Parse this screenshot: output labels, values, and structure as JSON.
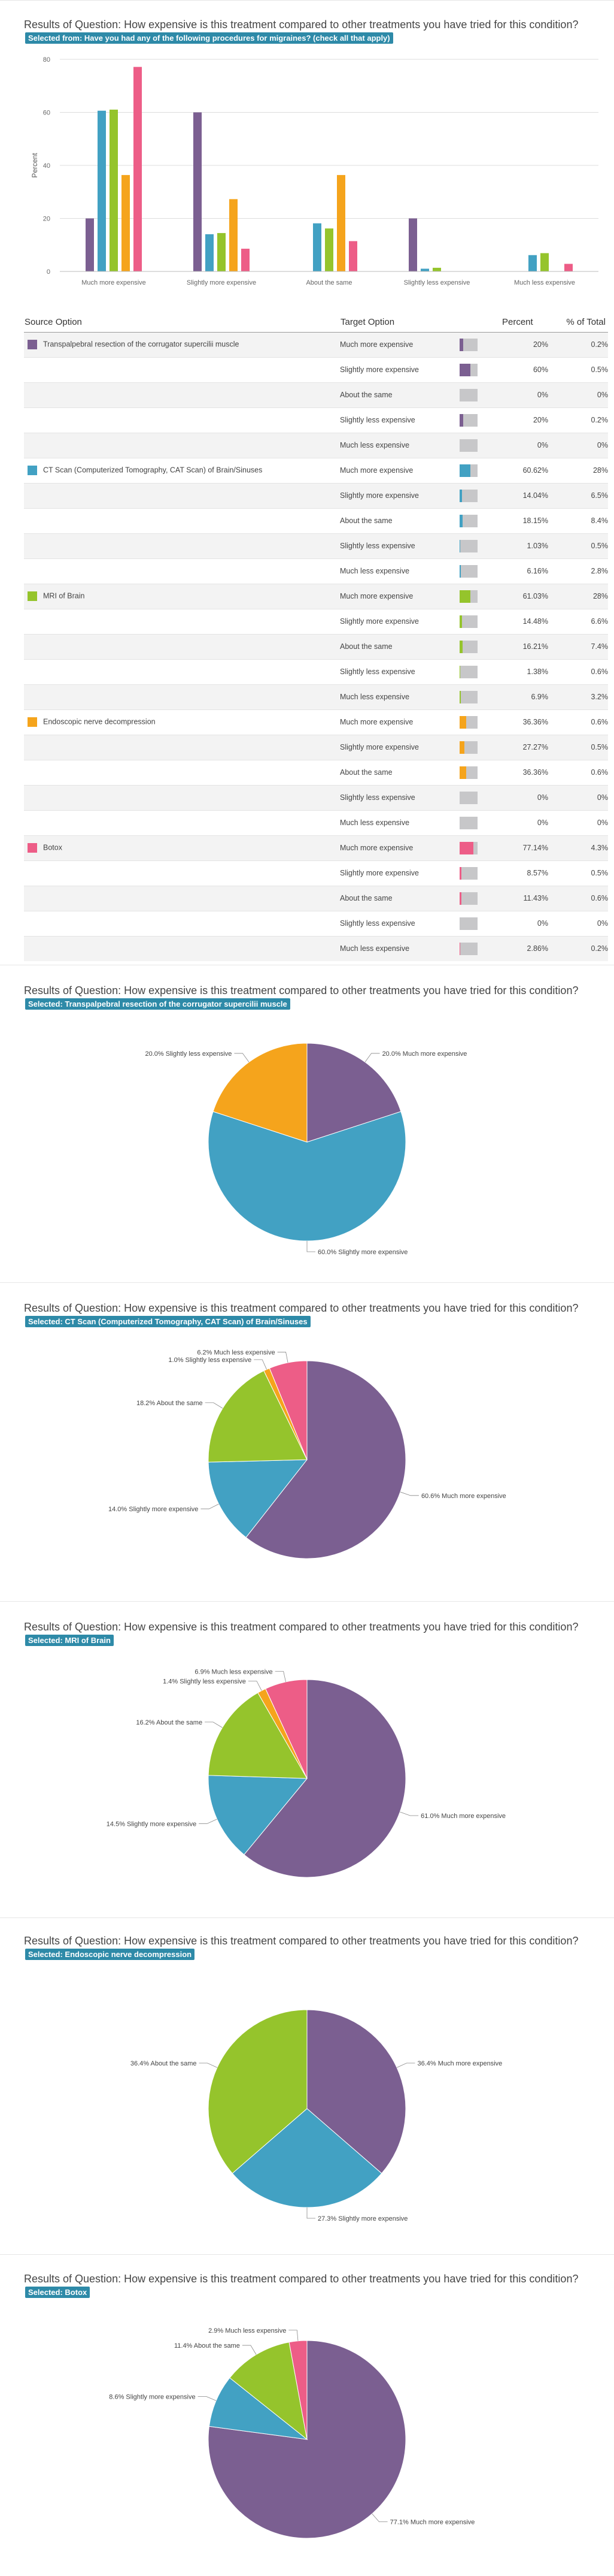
{
  "question_title": "Results of Question: How expensive is this treatment compared to other treatments you have tried for this condition?",
  "colors": {
    "Transpalpebral resection of the corrugator supercilii muscle": "#7b5f91",
    "CT Scan (Computerized Tomography, CAT Scan) of Brain/Sinuses": "#42a1c3",
    "MRI of Brain": "#95c42c",
    "Endoscopic nerve decompression": "#f5a41c",
    "Botox": "#ed5d87"
  },
  "bar_section": {
    "selected_label": "Selected from: Have you had any of the following procedures for migraines? (check all that apply)"
  },
  "table": {
    "headers": {
      "source": "Source Option",
      "target": "Target Option",
      "percent": "Percent",
      "total": "% of Total"
    },
    "rows": [
      {
        "source": "Transpalpebral resection of the corrugator supercilii muscle",
        "target": "Much more expensive",
        "percent": "20%",
        "total": "0.2%",
        "value": 20
      },
      {
        "source": "",
        "target": "Slightly more expensive",
        "percent": "60%",
        "total": "0.5%",
        "value": 60
      },
      {
        "source": "",
        "target": "About the same",
        "percent": "0%",
        "total": "0%",
        "value": 0
      },
      {
        "source": "",
        "target": "Slightly less expensive",
        "percent": "20%",
        "total": "0.2%",
        "value": 20
      },
      {
        "source": "",
        "target": "Much less expensive",
        "percent": "0%",
        "total": "0%",
        "value": 0
      },
      {
        "source": "CT Scan (Computerized Tomography, CAT Scan) of Brain/Sinuses",
        "target": "Much more expensive",
        "percent": "60.62%",
        "total": "28%",
        "value": 60.62
      },
      {
        "source": "",
        "target": "Slightly more expensive",
        "percent": "14.04%",
        "total": "6.5%",
        "value": 14.04
      },
      {
        "source": "",
        "target": "About the same",
        "percent": "18.15%",
        "total": "8.4%",
        "value": 18.15
      },
      {
        "source": "",
        "target": "Slightly less expensive",
        "percent": "1.03%",
        "total": "0.5%",
        "value": 1.03
      },
      {
        "source": "",
        "target": "Much less expensive",
        "percent": "6.16%",
        "total": "2.8%",
        "value": 6.16
      },
      {
        "source": "MRI of Brain",
        "target": "Much more expensive",
        "percent": "61.03%",
        "total": "28%",
        "value": 61.03
      },
      {
        "source": "",
        "target": "Slightly more expensive",
        "percent": "14.48%",
        "total": "6.6%",
        "value": 14.48
      },
      {
        "source": "",
        "target": "About the same",
        "percent": "16.21%",
        "total": "7.4%",
        "value": 16.21
      },
      {
        "source": "",
        "target": "Slightly less expensive",
        "percent": "1.38%",
        "total": "0.6%",
        "value": 1.38
      },
      {
        "source": "",
        "target": "Much less expensive",
        "percent": "6.9%",
        "total": "3.2%",
        "value": 6.9
      },
      {
        "source": "Endoscopic nerve decompression",
        "target": "Much more expensive",
        "percent": "36.36%",
        "total": "0.6%",
        "value": 36.36
      },
      {
        "source": "",
        "target": "Slightly more expensive",
        "percent": "27.27%",
        "total": "0.5%",
        "value": 27.27
      },
      {
        "source": "",
        "target": "About the same",
        "percent": "36.36%",
        "total": "0.6%",
        "value": 36.36
      },
      {
        "source": "",
        "target": "Slightly less expensive",
        "percent": "0%",
        "total": "0%",
        "value": 0
      },
      {
        "source": "",
        "target": "Much less expensive",
        "percent": "0%",
        "total": "0%",
        "value": 0
      },
      {
        "source": "Botox",
        "target": "Much more expensive",
        "percent": "77.14%",
        "total": "4.3%",
        "value": 77.14
      },
      {
        "source": "",
        "target": "Slightly more expensive",
        "percent": "8.57%",
        "total": "0.5%",
        "value": 8.57
      },
      {
        "source": "",
        "target": "About the same",
        "percent": "11.43%",
        "total": "0.6%",
        "value": 11.43
      },
      {
        "source": "",
        "target": "Slightly less expensive",
        "percent": "0%",
        "total": "0%",
        "value": 0
      },
      {
        "source": "",
        "target": "Much less expensive",
        "percent": "2.86%",
        "total": "0.2%",
        "value": 2.86
      }
    ]
  },
  "pie_sections": [
    {
      "selected_label": "Selected: Transpalpebral resection of the corrugator supercilii muscle"
    },
    {
      "selected_label": "Selected: CT Scan (Computerized Tomography, CAT Scan) of Brain/Sinuses"
    },
    {
      "selected_label": "Selected: MRI of Brain"
    },
    {
      "selected_label": "Selected: Endoscopic nerve decompression"
    },
    {
      "selected_label": "Selected: Botox"
    }
  ],
  "chart_data": [
    {
      "type": "bar",
      "ylabel": "Percent",
      "ylim": [
        0,
        80
      ],
      "yticks": [
        0,
        20,
        40,
        60,
        80
      ],
      "grid": true,
      "categories": [
        "Much more expensive",
        "Slightly more expensive",
        "About the same",
        "Slightly less expensive",
        "Much less expensive"
      ],
      "series": [
        {
          "name": "Transpalpebral resection of the corrugator supercilii muscle",
          "values": [
            20,
            60,
            0,
            20,
            0
          ]
        },
        {
          "name": "CT Scan (Computerized Tomography, CAT Scan) of Brain/Sinuses",
          "values": [
            60.62,
            14.04,
            18.15,
            1.03,
            6.16
          ]
        },
        {
          "name": "MRI of Brain",
          "values": [
            61.03,
            14.48,
            16.21,
            1.38,
            6.9
          ]
        },
        {
          "name": "Endoscopic nerve decompression",
          "values": [
            36.36,
            27.27,
            36.36,
            0,
            0
          ]
        },
        {
          "name": "Botox",
          "values": [
            77.14,
            8.57,
            11.43,
            0,
            2.86
          ]
        }
      ]
    },
    {
      "type": "pie",
      "slices": [
        {
          "label": "Much more expensive",
          "value": 20,
          "text": "20.0% Much more expensive"
        },
        {
          "label": "Slightly more expensive",
          "value": 60,
          "text": "60.0% Slightly more expensive"
        },
        {
          "label": "Slightly less expensive",
          "value": 20,
          "text": "20.0% Slightly less expensive"
        }
      ]
    },
    {
      "type": "pie",
      "slices": [
        {
          "label": "Much more expensive",
          "value": 60.6,
          "text": "60.6% Much more expensive"
        },
        {
          "label": "Slightly more expensive",
          "value": 14.0,
          "text": "14.0% Slightly more expensive"
        },
        {
          "label": "About the same",
          "value": 18.2,
          "text": "18.2% About the same"
        },
        {
          "label": "Slightly less expensive",
          "value": 1.0,
          "text": "1.0% Slightly less expensive"
        },
        {
          "label": "Much less expensive",
          "value": 6.2,
          "text": "6.2% Much less expensive"
        }
      ]
    },
    {
      "type": "pie",
      "slices": [
        {
          "label": "Much more expensive",
          "value": 61.0,
          "text": "61.0% Much more expensive"
        },
        {
          "label": "Slightly more expensive",
          "value": 14.5,
          "text": "14.5% Slightly more expensive"
        },
        {
          "label": "About the same",
          "value": 16.2,
          "text": "16.2% About the same"
        },
        {
          "label": "Slightly less expensive",
          "value": 1.4,
          "text": "1.4% Slightly less expensive"
        },
        {
          "label": "Much less expensive",
          "value": 6.9,
          "text": "6.9% Much less expensive"
        }
      ]
    },
    {
      "type": "pie",
      "slices": [
        {
          "label": "Much more expensive",
          "value": 36.4,
          "text": "36.4% Much more expensive"
        },
        {
          "label": "Slightly more expensive",
          "value": 27.3,
          "text": "27.3% Slightly more expensive"
        },
        {
          "label": "About the same",
          "value": 36.4,
          "text": "36.4% About the same"
        }
      ]
    },
    {
      "type": "pie",
      "slices": [
        {
          "label": "Much more expensive",
          "value": 77.1,
          "text": "77.1% Much more expensive"
        },
        {
          "label": "Slightly more expensive",
          "value": 8.6,
          "text": "8.6% Slightly more expensive"
        },
        {
          "label": "About the same",
          "value": 11.4,
          "text": "11.4% About the same"
        },
        {
          "label": "Much less expensive",
          "value": 2.9,
          "text": "2.9% Much less expensive"
        }
      ]
    }
  ],
  "pie_colors": {
    "Much more expensive": "#7b5f91",
    "Slightly more expensive": "#42a1c3",
    "About the same": "#95c42c",
    "Slightly less expensive": "#f5a41c",
    "Much less expensive": "#ed5d87"
  }
}
